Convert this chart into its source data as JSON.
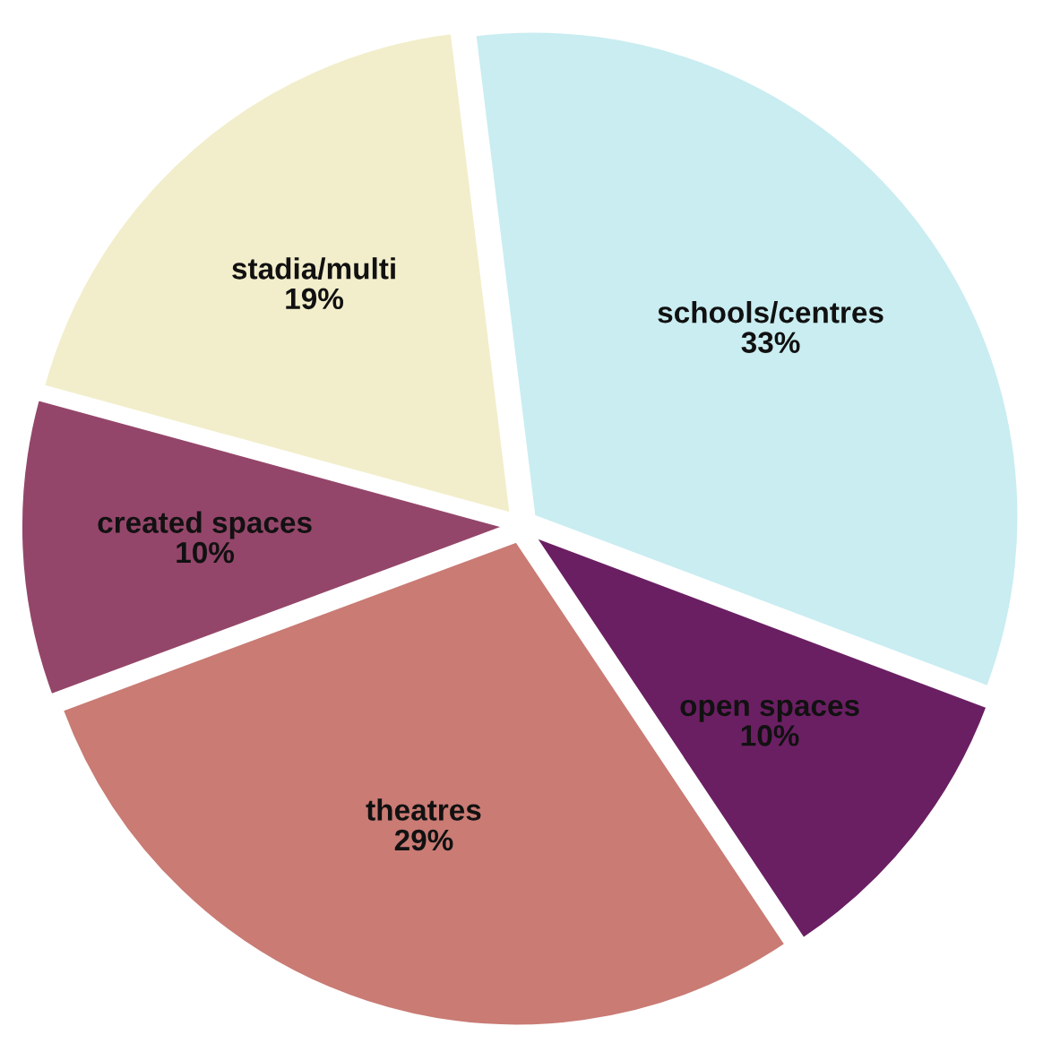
{
  "chart_data": {
    "type": "pie",
    "categories": [
      "schools/centres",
      "open spaces",
      "theatres",
      "created spaces",
      "stadia/multi"
    ],
    "values": [
      33,
      10,
      29,
      10,
      19
    ],
    "colors": [
      "#c9edf1",
      "#6b1f63",
      "#c97b74",
      "#94466a",
      "#f2eecb"
    ],
    "value_labels": [
      "33%",
      "10%",
      "29%",
      "10%",
      "19%"
    ]
  }
}
